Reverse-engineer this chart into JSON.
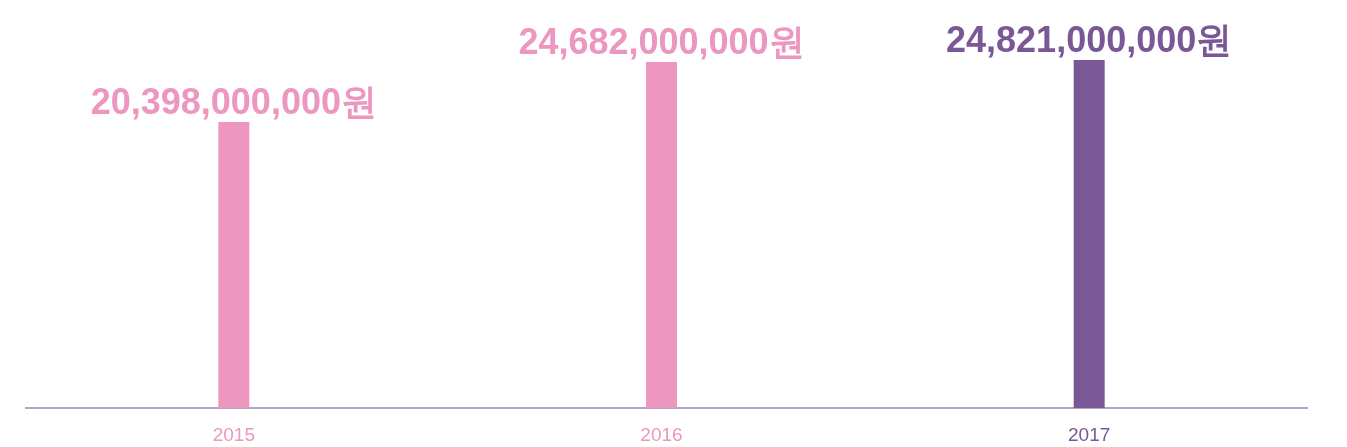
{
  "chart_data": {
    "type": "bar",
    "categories": [
      "2015",
      "2016",
      "2017"
    ],
    "values": [
      20398000000,
      24682000000,
      24821000000
    ],
    "colors": [
      "#ec96c0",
      "#ec96c0",
      "#795895"
    ],
    "value_labels": [
      "20,398,000,000원",
      "24,682,000,000원",
      "24,821,000,000원"
    ]
  }
}
